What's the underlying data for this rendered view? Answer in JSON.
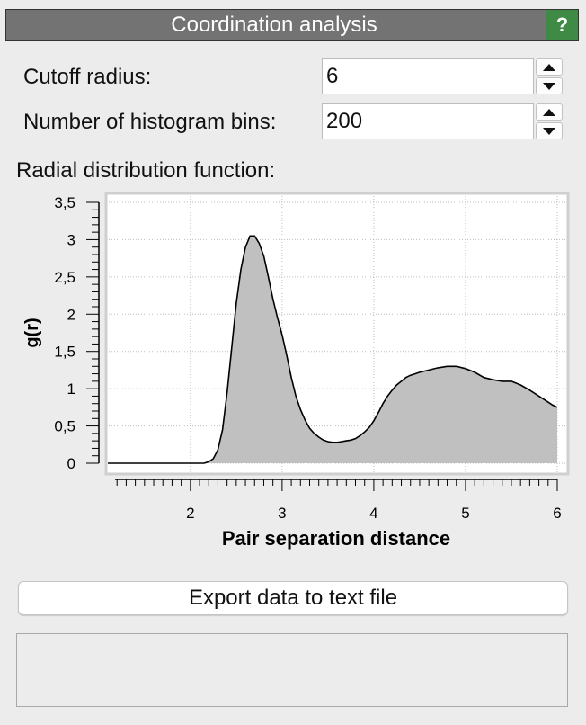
{
  "panel": {
    "title": "Coordination analysis",
    "help_label": "?"
  },
  "cutoff": {
    "label": "Cutoff radius:",
    "value": "6"
  },
  "bins": {
    "label": "Number of histogram bins:",
    "value": "200"
  },
  "rdf_label": "Radial distribution function:",
  "export_button": "Export data to text file",
  "colors": {
    "title_bar": "#737373",
    "help": "#3f8a45",
    "fill": "#c0c0c0",
    "plot_bg": "#ffffff"
  },
  "chart_data": {
    "type": "area",
    "xlabel": "Pair separation distance",
    "ylabel": "g(r)",
    "xlim": [
      1.1,
      6.0
    ],
    "ylim": [
      0,
      3.5
    ],
    "x_ticks": [
      "2",
      "3",
      "4",
      "5",
      "6"
    ],
    "y_ticks": [
      "0",
      "0,5",
      "1",
      "1,5",
      "2",
      "2,5",
      "3",
      "3,5"
    ],
    "grid": true,
    "series": [
      {
        "x": [
          1.1,
          2.15,
          2.2,
          2.25,
          2.3,
          2.35,
          2.4,
          2.45,
          2.5,
          2.55,
          2.6,
          2.65,
          2.7,
          2.75,
          2.8,
          2.85,
          2.9,
          2.95,
          3.0,
          3.05,
          3.1,
          3.15,
          3.2,
          3.25,
          3.3,
          3.35,
          3.4,
          3.45,
          3.5,
          3.55,
          3.6,
          3.65,
          3.7,
          3.75,
          3.8,
          3.85,
          3.9,
          3.95,
          4.0,
          4.05,
          4.1,
          4.15,
          4.2,
          4.25,
          4.3,
          4.35,
          4.4,
          4.45,
          4.5,
          4.6,
          4.7,
          4.8,
          4.9,
          5.0,
          5.1,
          5.2,
          5.3,
          5.4,
          5.5,
          5.6,
          5.7,
          5.8,
          5.9,
          5.95,
          6.0
        ],
        "y": [
          0,
          0,
          0.02,
          0.06,
          0.18,
          0.45,
          0.95,
          1.55,
          2.15,
          2.6,
          2.9,
          3.05,
          3.05,
          2.95,
          2.78,
          2.5,
          2.2,
          1.95,
          1.72,
          1.45,
          1.15,
          0.9,
          0.72,
          0.58,
          0.47,
          0.4,
          0.35,
          0.31,
          0.29,
          0.28,
          0.28,
          0.29,
          0.3,
          0.31,
          0.33,
          0.37,
          0.42,
          0.48,
          0.57,
          0.68,
          0.8,
          0.9,
          0.98,
          1.05,
          1.1,
          1.15,
          1.18,
          1.2,
          1.22,
          1.25,
          1.28,
          1.3,
          1.3,
          1.27,
          1.22,
          1.15,
          1.12,
          1.1,
          1.1,
          1.05,
          0.98,
          0.9,
          0.82,
          0.78,
          0.75
        ]
      }
    ]
  }
}
